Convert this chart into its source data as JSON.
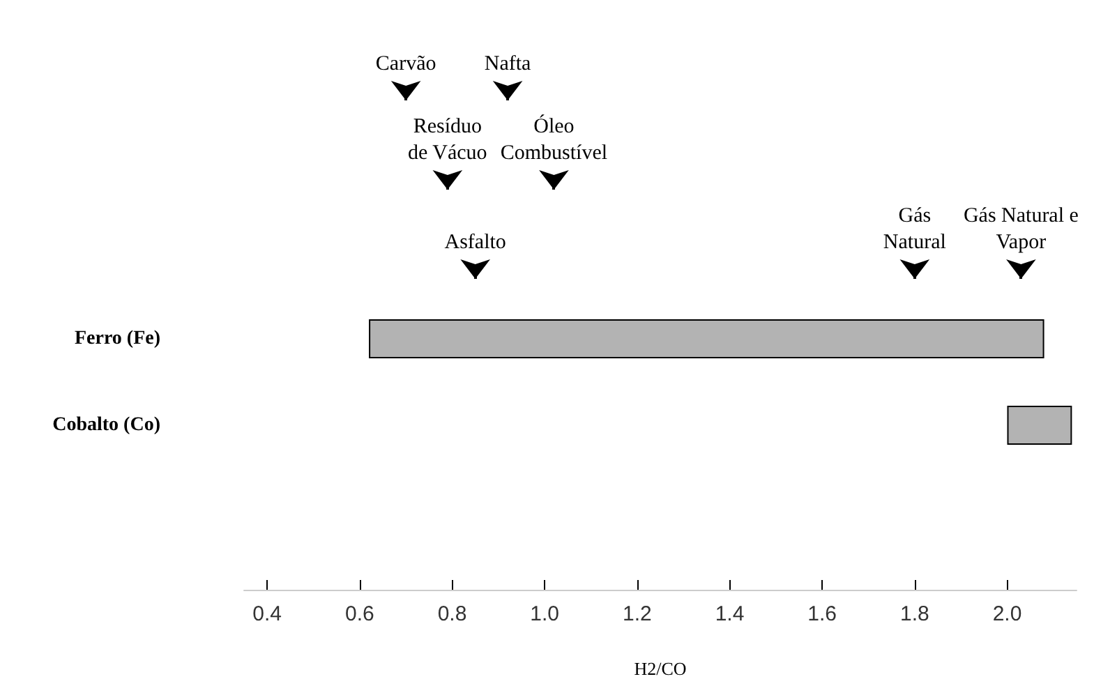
{
  "chart_data": {
    "type": "bar",
    "orientation": "horizontal",
    "categories": [
      "Ferro (Fe)",
      "Cobalto (Co)"
    ],
    "base": [
      0.62,
      2.0
    ],
    "values": [
      1.46,
      0.14
    ],
    "color": "#b3b3b3",
    "xlabel": "H2/CO",
    "xlim": [
      0.35,
      2.15
    ],
    "xticks": [
      0.4,
      0.6,
      0.8,
      {
        "value": 1,
        "label": "1.0"
      },
      1.2,
      1.4,
      1.6,
      1.8,
      {
        "value": 2,
        "label": "2.0"
      }
    ],
    "grid": false,
    "ref_lines": [
      {
        "axis": "x",
        "value": 0.85,
        "label": "Asfalto"
      },
      {
        "axis": "x",
        "value": 1.8,
        "label": "Gás\nNatural"
      },
      {
        "axis": "x",
        "value": 2.03,
        "label": "Gás Natural e\nVapor"
      },
      {
        "axis": "x",
        "value": 0.79,
        "label": "Resíduo\nde Vácuo"
      },
      {
        "axis": "x",
        "value": 1.02,
        "label": "Óleo\nCombustível"
      },
      {
        "axis": "x",
        "value": 0.7,
        "label": "Carvão"
      },
      {
        "axis": "x",
        "value": 0.92,
        "label": "Nafta"
      }
    ]
  }
}
